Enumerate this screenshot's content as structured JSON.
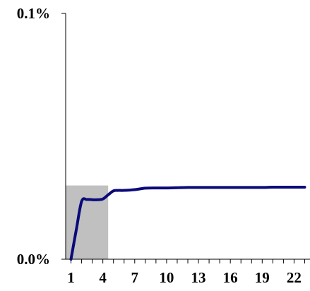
{
  "chart_data": {
    "type": "line",
    "title": "",
    "xlabel": "",
    "ylabel": "",
    "x": [
      1,
      1.5,
      2,
      2.5,
      3,
      3.5,
      4,
      4.5,
      5,
      5.5,
      6,
      7,
      8,
      9,
      10,
      11,
      12,
      13,
      14,
      15,
      16,
      17,
      18,
      19,
      20,
      21,
      22,
      23
    ],
    "series": [
      {
        "name": "",
        "values": [
          0.0,
          0.012,
          0.0235,
          0.0243,
          0.0242,
          0.0242,
          0.0245,
          0.0262,
          0.0278,
          0.028,
          0.028,
          0.0283,
          0.0289,
          0.029,
          0.029,
          0.0291,
          0.0292,
          0.0292,
          0.0292,
          0.0292,
          0.0292,
          0.0292,
          0.0292,
          0.0292,
          0.0293,
          0.0293,
          0.0293,
          0.0293
        ]
      }
    ],
    "xlim": [
      0.5,
      23.5
    ],
    "ylim": [
      0,
      0.1
    ],
    "y_tick_labels": [
      "0.0%",
      "0.1%"
    ],
    "y_tick_values": [
      0,
      0.1
    ],
    "x_tick_labels": [
      "1",
      "4",
      "7",
      "10",
      "13",
      "16",
      "19",
      "22"
    ],
    "x_tick_values": [
      1,
      4,
      7,
      10,
      13,
      16,
      19,
      22
    ],
    "minor_x_ticks": [
      1,
      2,
      3,
      4,
      5,
      6,
      7,
      8,
      9,
      10,
      11,
      12,
      13,
      14,
      15,
      16,
      17,
      18,
      19,
      20,
      21,
      22,
      23
    ],
    "shaded_region": {
      "x": [
        0.5,
        4.5
      ],
      "y": [
        0,
        0.03
      ]
    },
    "grid": false,
    "legend": "none",
    "colors": {
      "line": "#0a0a7a",
      "shade": "#c0c0c0",
      "axis": "#000000"
    }
  }
}
